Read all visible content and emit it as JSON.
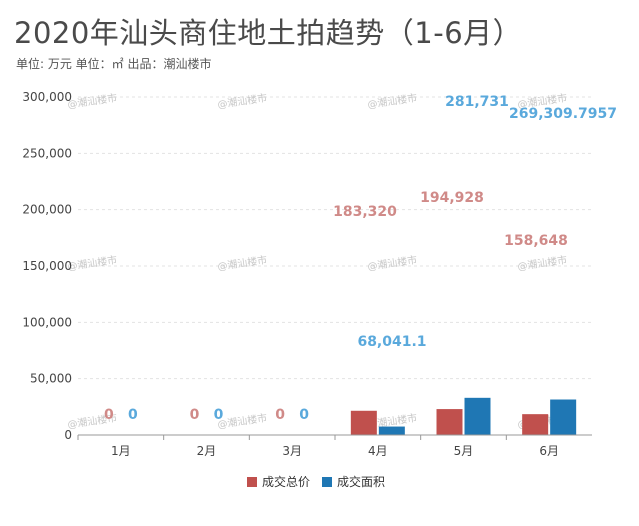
{
  "header": {
    "title": "2020年汕头商住地土拍趋势（1-6月）",
    "subtitle": "单位: 万元 单位：㎡ 出品：潮汕楼市"
  },
  "watermark": "@潮汕楼市",
  "colors": {
    "total_price": "#c0504d",
    "area": "#1f77b4",
    "area_label": "#5aa9dc",
    "price_label": "#d08a88"
  },
  "chart_data": {
    "type": "bar",
    "title": "2020年汕头商住地土拍趋势（1-6月）",
    "categories": [
      "1月",
      "2月",
      "3月",
      "4月",
      "5月",
      "6月"
    ],
    "series": [
      {
        "name": "成交总价",
        "values": [
          0,
          0,
          0,
          183320,
          194928,
          158648
        ]
      },
      {
        "name": "成交面积",
        "values": [
          0,
          0,
          0,
          68041.1,
          281731,
          269309.7957
        ]
      }
    ],
    "bar_values_scaled": [
      [
        0,
        0,
        0,
        21500,
        23000,
        18500
      ],
      [
        0,
        0,
        0,
        7500,
        33000,
        31500
      ]
    ],
    "data_labels": [
      [
        "0",
        "0",
        "0",
        "183,320",
        "194,928",
        "158,648"
      ],
      [
        "0",
        "0",
        "0",
        "68,041.1",
        "281,731",
        "269,309.7957"
      ]
    ],
    "yticks": [
      "0",
      "50,000",
      "100,000",
      "150,000",
      "200,000",
      "250,000",
      "300,000"
    ],
    "ylim": [
      0,
      300000
    ],
    "grid": true,
    "legend_position": "bottom"
  }
}
